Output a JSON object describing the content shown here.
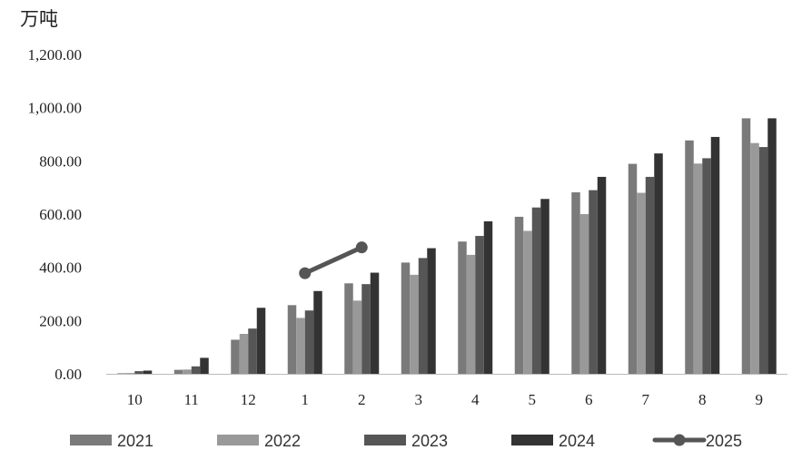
{
  "chart_data": {
    "type": "bar",
    "title": "",
    "xlabel": "",
    "ylabel": "万吨",
    "ylim": [
      0,
      1200
    ],
    "yticks": [
      "0.00",
      "200.00",
      "400.00",
      "600.00",
      "800.00",
      "1,000.00",
      "1,200.00"
    ],
    "grid": false,
    "legend_position": "bottom",
    "categories": [
      "10",
      "11",
      "12",
      "1",
      "2",
      "3",
      "4",
      "5",
      "6",
      "7",
      "8",
      "9"
    ],
    "series": [
      {
        "name": "2021",
        "type": "bar",
        "color": "#7a7a7a",
        "values": [
          2,
          15,
          128,
          258,
          340,
          418,
          497,
          590,
          682,
          789,
          877,
          960
        ]
      },
      {
        "name": "2022",
        "type": "bar",
        "color": "#999999",
        "values": [
          3,
          16,
          150,
          210,
          275,
          372,
          447,
          537,
          600,
          680,
          790,
          867
        ]
      },
      {
        "name": "2023",
        "type": "bar",
        "color": "#565656",
        "values": [
          10,
          28,
          170,
          238,
          337,
          435,
          518,
          625,
          690,
          740,
          810,
          852
        ]
      },
      {
        "name": "2024",
        "type": "bar",
        "color": "#333333",
        "values": [
          12,
          60,
          248,
          311,
          380,
          472,
          573,
          657,
          740,
          828,
          890,
          960
        ]
      },
      {
        "name": "2025",
        "type": "line",
        "color": "#555555",
        "values": [
          null,
          null,
          null,
          378,
          475,
          null,
          null,
          null,
          null,
          null,
          null,
          null
        ]
      }
    ]
  }
}
